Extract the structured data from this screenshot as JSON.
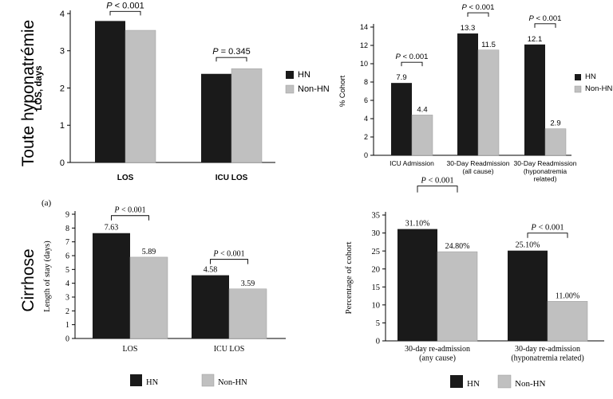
{
  "row_labels": [
    "Toute hyponatrémie",
    "Cirrhose"
  ],
  "panel_label_a": "(a)",
  "chart_data": [
    {
      "type": "bar",
      "categories": [
        "LOS",
        "ICU LOS"
      ],
      "series": [
        {
          "name": "HN",
          "values": [
            3.8,
            2.38
          ]
        },
        {
          "name": "Non-HN",
          "values": [
            3.55,
            2.52
          ]
        }
      ],
      "ylabel": "LOS, days",
      "ylim": [
        0,
        4
      ],
      "yticks": [
        0,
        1,
        2,
        3,
        4
      ],
      "annotations": [
        "P < 0.001",
        "P = 0.345"
      ],
      "value_labels": [
        [
          "",
          ""
        ],
        [
          "",
          ""
        ]
      ],
      "legend": "right",
      "colors": [
        "#1a1a1a",
        "#c0c0c0"
      ],
      "font": "sans"
    },
    {
      "type": "bar",
      "categories": [
        "ICU Admission",
        "30-Day Readmission\n(all cause)",
        "30-Day Readmission\n(hyponatremia\nrelated)"
      ],
      "series": [
        {
          "name": "HN",
          "values": [
            7.9,
            13.3,
            12.1
          ]
        },
        {
          "name": "Non-HN",
          "values": [
            4.4,
            11.5,
            2.9
          ]
        }
      ],
      "ylabel": "% Cohort",
      "ylim": [
        0,
        14
      ],
      "yticks": [
        0,
        2,
        4,
        6,
        8,
        10,
        12,
        14
      ],
      "annotations": [
        "P < 0.001",
        "P < 0.001",
        "P < 0.001"
      ],
      "value_labels": [
        [
          "7.9",
          "13.3",
          "12.1"
        ],
        [
          "4.4",
          "11.5",
          "2.9"
        ]
      ],
      "legend": "right",
      "colors": [
        "#1a1a1a",
        "#c0c0c0"
      ],
      "font": "sans"
    },
    {
      "type": "bar",
      "categories": [
        "LOS",
        "ICU LOS"
      ],
      "series": [
        {
          "name": "HN",
          "values": [
            7.63,
            4.58
          ]
        },
        {
          "name": "Non-HN",
          "values": [
            5.89,
            3.59
          ]
        }
      ],
      "ylabel": "Length of stay (days)",
      "ylim": [
        0,
        9
      ],
      "yticks": [
        0,
        1,
        2,
        3,
        4,
        5,
        6,
        7,
        8,
        9
      ],
      "annotations": [
        "P < 0.001",
        "P < 0.001"
      ],
      "value_labels": [
        [
          "7.63",
          "4.58"
        ],
        [
          "5.89",
          "3.59"
        ]
      ],
      "legend": "bottom",
      "colors": [
        "#1a1a1a",
        "#c0c0c0"
      ],
      "font": "serif"
    },
    {
      "type": "bar",
      "categories": [
        "30-day re-admission\n(any cause)",
        "30-day re-admission\n(hyponatremia related)"
      ],
      "series": [
        {
          "name": "HN",
          "values": [
            31.1,
            25.1
          ]
        },
        {
          "name": "Non-HN",
          "values": [
            24.8,
            11.0
          ]
        }
      ],
      "ylabel": "Percentage of cohort",
      "ylim": [
        0,
        35
      ],
      "yticks": [
        0,
        5,
        10,
        15,
        20,
        25,
        30,
        35
      ],
      "annotations": [
        "P < 0.001",
        "P < 0.001"
      ],
      "value_labels": [
        [
          "31.10%",
          "25.10%"
        ],
        [
          "24.80%",
          "11.00%"
        ]
      ],
      "legend": "bottom",
      "colors": [
        "#1a1a1a",
        "#c0c0c0"
      ],
      "font": "serif"
    }
  ]
}
